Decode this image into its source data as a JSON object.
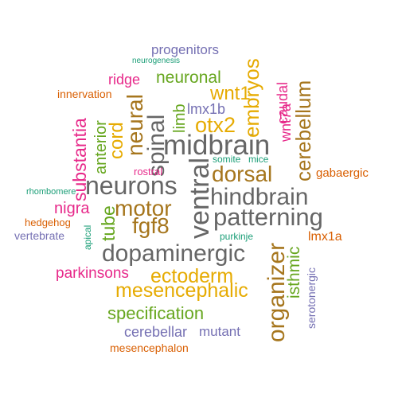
{
  "wordcloud": {
    "colors": {
      "teal": "#1b9e77",
      "orange": "#d95f02",
      "purple": "#7570b3",
      "magenta": "#e7298a",
      "green": "#66a61e",
      "gold": "#e6ab02",
      "brown": "#a6761d",
      "gray": "#666666"
    },
    "words": [
      {
        "text": "midbrain",
        "color": "gray"
      },
      {
        "text": "neurons",
        "color": "gray"
      },
      {
        "text": "hindbrain",
        "color": "gray"
      },
      {
        "text": "patterning",
        "color": "gray"
      },
      {
        "text": "dopaminergic",
        "color": "gray"
      },
      {
        "text": "ventral",
        "color": "gray"
      },
      {
        "text": "spinal",
        "color": "gray"
      },
      {
        "text": "progenitors",
        "color": "purple"
      },
      {
        "text": "neurogenesis",
        "color": "teal"
      },
      {
        "text": "embryos",
        "color": "gold"
      },
      {
        "text": "neuronal",
        "color": "green"
      },
      {
        "text": "ridge",
        "color": "magenta"
      },
      {
        "text": "innervation",
        "color": "orange"
      },
      {
        "text": "wnt1",
        "color": "gold"
      },
      {
        "text": "lmx1b",
        "color": "purple"
      },
      {
        "text": "caudal",
        "color": "magenta"
      },
      {
        "text": "wnt7a",
        "color": "magenta"
      },
      {
        "text": "cerebellum",
        "color": "brown"
      },
      {
        "text": "limb",
        "color": "green"
      },
      {
        "text": "otx2",
        "color": "gold"
      },
      {
        "text": "neural",
        "color": "brown"
      },
      {
        "text": "cord",
        "color": "gold"
      },
      {
        "text": "anterior",
        "color": "green"
      },
      {
        "text": "substantia",
        "color": "magenta"
      },
      {
        "text": "somite",
        "color": "teal"
      },
      {
        "text": "mice",
        "color": "teal"
      },
      {
        "text": "dorsal",
        "color": "brown"
      },
      {
        "text": "rostral",
        "color": "magenta"
      },
      {
        "text": "gabaergic",
        "color": "orange"
      },
      {
        "text": "rhombomere",
        "color": "teal"
      },
      {
        "text": "motor",
        "color": "brown"
      },
      {
        "text": "nigra",
        "color": "magenta"
      },
      {
        "text": "tube",
        "color": "green"
      },
      {
        "text": "fgf8",
        "color": "brown"
      },
      {
        "text": "hedgehog",
        "color": "orange"
      },
      {
        "text": "apical",
        "color": "teal"
      },
      {
        "text": "vertebrate",
        "color": "purple"
      },
      {
        "text": "purkinje",
        "color": "teal"
      },
      {
        "text": "organizer",
        "color": "brown"
      },
      {
        "text": "isthmic",
        "color": "green"
      },
      {
        "text": "lmx1a",
        "color": "orange"
      },
      {
        "text": "serotonergic",
        "color": "purple"
      },
      {
        "text": "parkinsons",
        "color": "magenta"
      },
      {
        "text": "ectoderm",
        "color": "gold"
      },
      {
        "text": "mesencephalic",
        "color": "gold"
      },
      {
        "text": "specification",
        "color": "green"
      },
      {
        "text": "cerebellar",
        "color": "purple"
      },
      {
        "text": "mutant",
        "color": "purple"
      },
      {
        "text": "mesencephalon",
        "color": "orange"
      }
    ]
  }
}
